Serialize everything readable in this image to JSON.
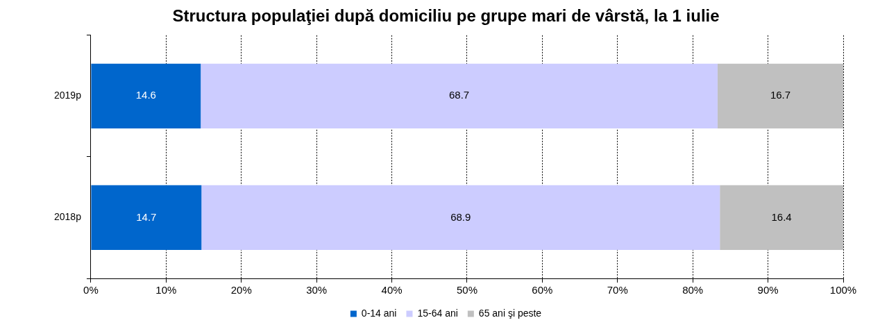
{
  "chart_data": {
    "type": "bar",
    "orientation": "horizontal",
    "stacked": true,
    "title": "Structura populaţiei după domiciliu pe grupe mari de vârstă, la 1 iulie",
    "categories": [
      "2019p",
      "2018p"
    ],
    "series": [
      {
        "name": "0-14 ani",
        "color": "#0066cc",
        "values": [
          14.6,
          14.7
        ]
      },
      {
        "name": "15-64 ani",
        "color": "#ccccff",
        "values": [
          68.7,
          68.9
        ]
      },
      {
        "name": "65 ani şi peste",
        "color": "#c0c0c0",
        "values": [
          16.7,
          16.4
        ]
      }
    ],
    "xlim": [
      0,
      100
    ],
    "xticks": [
      {
        "value": 0,
        "label": "0%"
      },
      {
        "value": 10,
        "label": "10%"
      },
      {
        "value": 20,
        "label": "20%"
      },
      {
        "value": 30,
        "label": "30%"
      },
      {
        "value": 40,
        "label": "40%"
      },
      {
        "value": 50,
        "label": "50%"
      },
      {
        "value": 60,
        "label": "60%"
      },
      {
        "value": 70,
        "label": "70%"
      },
      {
        "value": 80,
        "label": "80%"
      },
      {
        "value": 90,
        "label": "90%"
      },
      {
        "value": 100,
        "label": "100%"
      }
    ],
    "grid": "x",
    "legend": "bottom",
    "data_labels": true
  }
}
